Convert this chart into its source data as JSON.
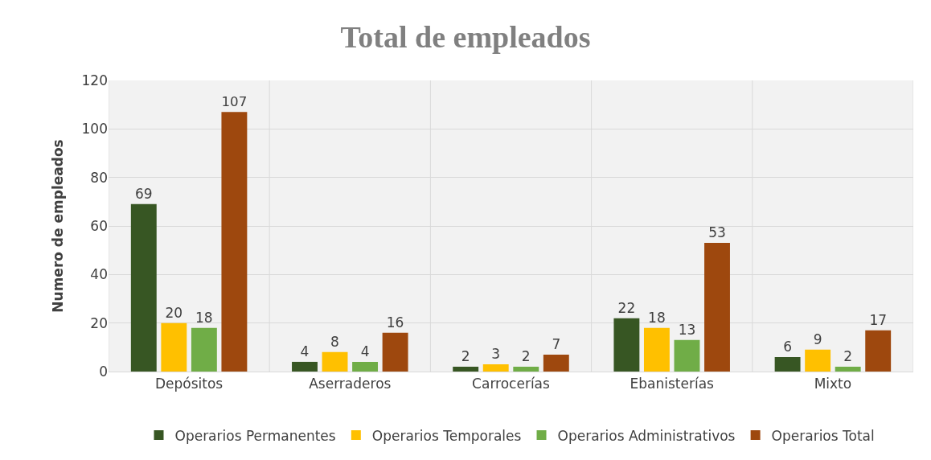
{
  "chart_data": {
    "type": "bar",
    "title": "Total de empleados",
    "ylabel": "Numero de empleados",
    "categories": [
      "Depósitos",
      "Aserraderos",
      "Carrocerías",
      "Ebanisterías",
      "Mixto"
    ],
    "series": [
      {
        "name": "Operarios Permanentes",
        "color": "#375623",
        "values": [
          69,
          4,
          2,
          22,
          6
        ]
      },
      {
        "name": "Operarios Temporales",
        "color": "#ffc000",
        "values": [
          20,
          8,
          3,
          18,
          9
        ]
      },
      {
        "name": "Operarios Administrativos",
        "color": "#70ad47",
        "values": [
          18,
          4,
          2,
          13,
          2
        ]
      },
      {
        "name": "Operarios Total",
        "color": "#9e480e",
        "values": [
          107,
          16,
          7,
          53,
          17
        ]
      }
    ],
    "ylim": [
      0,
      120
    ],
    "yticks": [
      0,
      20,
      40,
      60,
      80,
      100,
      120
    ],
    "grid": "y",
    "legend": "bottom",
    "data_labels": true
  }
}
